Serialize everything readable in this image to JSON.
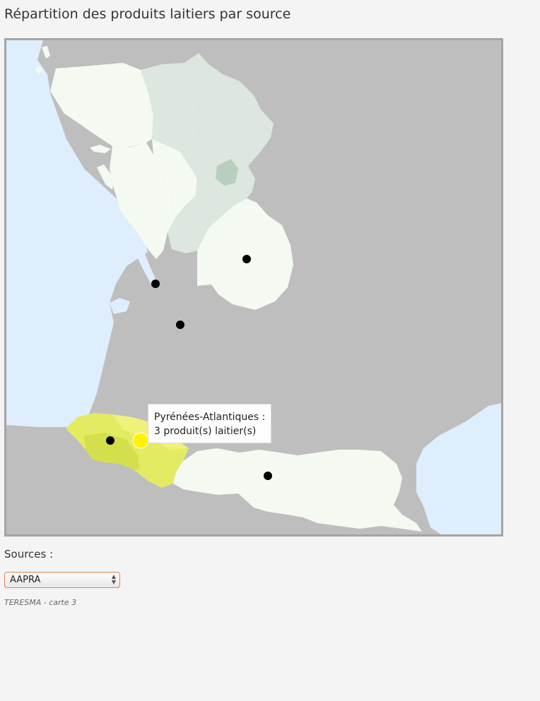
{
  "page": {
    "title": "Répartition des produits laitiers par source"
  },
  "map": {
    "colors": {
      "sea": "#dfeefc",
      "land_outside": "#bebebe",
      "level_0": "#f4faf2",
      "level_low": "#dde6df",
      "level_mid": "#b8cfc0",
      "highlight_light": "#eef27a",
      "highlight": "#e3eb62",
      "highlight_dark": "#d4df4c",
      "marker": "#000000",
      "marker_hover": "#fff200"
    },
    "tooltip": {
      "line1": "Pyrénées-Atlantiques :",
      "line2": "3 produit(s) laitier(s)"
    }
  },
  "controls": {
    "sources_label": "Sources :",
    "sources_selected": "AAPRA",
    "arrows_icon": "up-down-arrows-icon"
  },
  "footer": {
    "note": "TERESMA - carte 3"
  }
}
